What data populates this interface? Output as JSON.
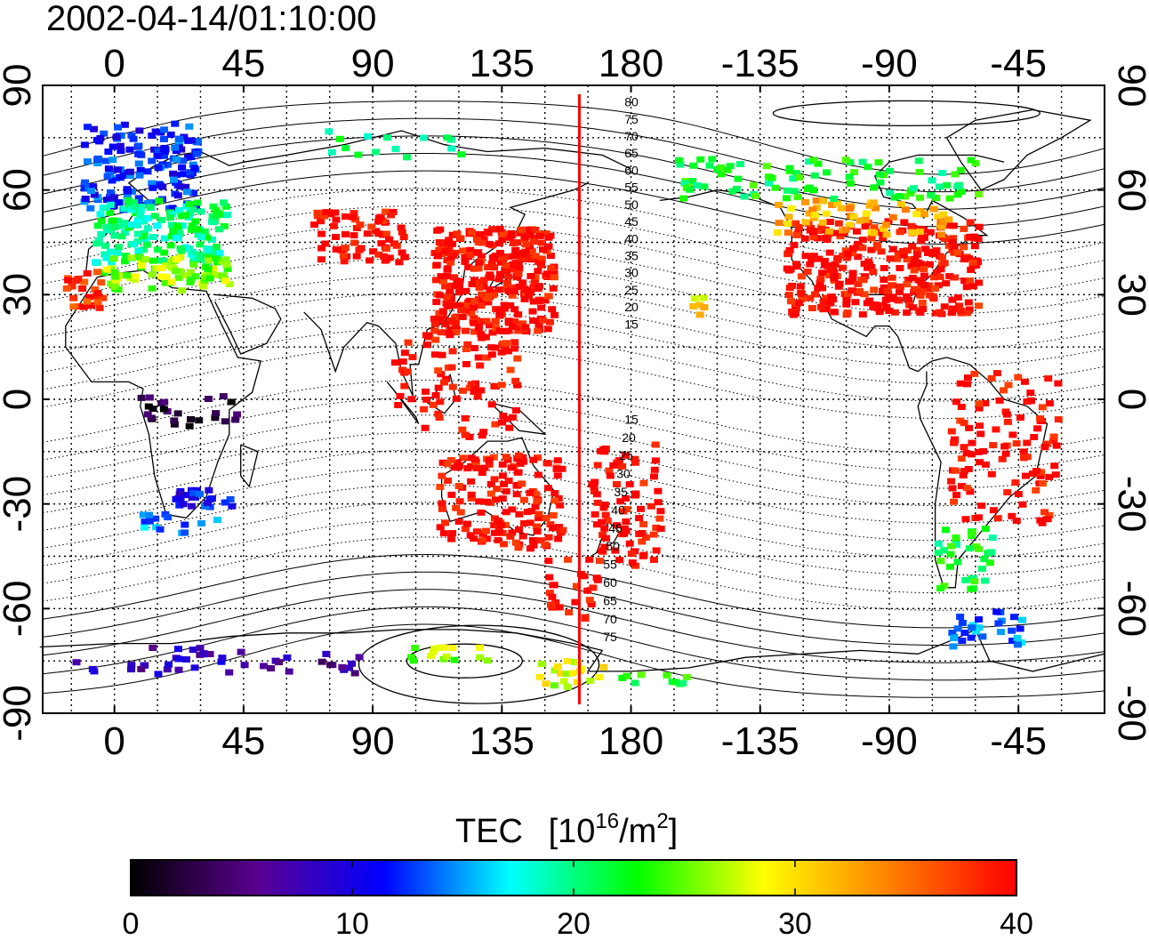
{
  "timestamp": "2002-04-14/01:10:00",
  "axes": {
    "x_ticks_top": [
      "0",
      "45",
      "90",
      "135",
      "180",
      "-135",
      "-90",
      "-45"
    ],
    "x_ticks_bottom": [
      "0",
      "45",
      "90",
      "135",
      "180",
      "-135",
      "-90",
      "-45"
    ],
    "y_ticks": [
      "90",
      "60",
      "30",
      "0",
      "-30",
      "-60",
      "-90"
    ],
    "lon_values": [
      0,
      45,
      90,
      135,
      180,
      225,
      270,
      315
    ],
    "lat_values": [
      90,
      60,
      30,
      0,
      -30,
      -60,
      -90
    ],
    "lon_range": [
      -25,
      345
    ],
    "lat_range": [
      -90,
      90
    ]
  },
  "terminator_longitude": 162,
  "contour_labels_north": [
    "80",
    "75",
    "70",
    "65",
    "60",
    "55",
    "50",
    "45",
    "40",
    "35",
    "30",
    "25",
    "20",
    "15"
  ],
  "contour_labels_south": [
    "15",
    "20",
    "25",
    "30",
    "35",
    "40",
    "45",
    "50",
    "55",
    "60",
    "65",
    "70",
    "75"
  ],
  "colorbar": {
    "title": "TEC",
    "unit_prefix": "[10",
    "unit_exp1": "16",
    "unit_mid": "/m",
    "unit_exp2": "2",
    "unit_suffix": "]",
    "ticks": [
      "0",
      "10",
      "20",
      "30",
      "40"
    ],
    "min": 0,
    "max": 40,
    "colors": [
      "#000000",
      "#5a0090",
      "#0000ff",
      "#00ffff",
      "#00ff00",
      "#ffff00",
      "#ff8000",
      "#ff0000"
    ]
  },
  "tec_regions": [
    {
      "lon": [
        -12,
        28
      ],
      "lat": [
        55,
        80
      ],
      "tec": 12,
      "count": 160
    },
    {
      "lon": [
        -8,
        38
      ],
      "lat": [
        40,
        58
      ],
      "tec": 20,
      "count": 150
    },
    {
      "lon": [
        -5,
        40
      ],
      "lat": [
        32,
        42
      ],
      "tec": 26,
      "count": 80
    },
    {
      "lon": [
        -18,
        -5
      ],
      "lat": [
        27,
        38
      ],
      "tec": 38,
      "count": 25
    },
    {
      "lon": [
        110,
        152
      ],
      "lat": [
        20,
        50
      ],
      "tec": 40,
      "count": 320
    },
    {
      "lon": [
        68,
        100
      ],
      "lat": [
        40,
        55
      ],
      "tec": 40,
      "count": 70
    },
    {
      "lon": [
        95,
        140
      ],
      "lat": [
        -10,
        20
      ],
      "tec": 40,
      "count": 90
    },
    {
      "lon": [
        112,
        155
      ],
      "lat": [
        -42,
        -15
      ],
      "tec": 40,
      "count": 150
    },
    {
      "lon": [
        165,
        190
      ],
      "lat": [
        -47,
        -12
      ],
      "tec": 40,
      "count": 80
    },
    {
      "lon": [
        148,
        168
      ],
      "lat": [
        -62,
        -45
      ],
      "tec": 40,
      "count": 25
    },
    {
      "lon": [
        233,
        300
      ],
      "lat": [
        25,
        52
      ],
      "tec": 40,
      "count": 320
    },
    {
      "lon": [
        228,
        290
      ],
      "lat": [
        48,
        58
      ],
      "tec": 32,
      "count": 60
    },
    {
      "lon": [
        195,
        300
      ],
      "lat": [
        58,
        70
      ],
      "tec": 22,
      "count": 90
    },
    {
      "lon": [
        290,
        328
      ],
      "lat": [
        -35,
        10
      ],
      "tec": 40,
      "count": 110
    },
    {
      "lon": [
        285,
        305
      ],
      "lat": [
        -55,
        -35
      ],
      "tec": 22,
      "count": 35
    },
    {
      "lon": [
        290,
        315
      ],
      "lat": [
        -70,
        -60
      ],
      "tec": 14,
      "count": 30
    },
    {
      "lon": [
        8,
        42
      ],
      "lat": [
        -8,
        2
      ],
      "tec": 2,
      "count": 25
    },
    {
      "lon": [
        20,
        40
      ],
      "lat": [
        -30,
        -25
      ],
      "tec": 11,
      "count": 25
    },
    {
      "lon": [
        8,
        35
      ],
      "lat": [
        -38,
        -32
      ],
      "tec": 15,
      "count": 15
    },
    {
      "lon": [
        -15,
        60
      ],
      "lat": [
        -78,
        -70
      ],
      "tec": 8,
      "count": 35
    },
    {
      "lon": [
        70,
        85
      ],
      "lat": [
        -78,
        -72
      ],
      "tec": 6,
      "count": 10
    },
    {
      "lon": [
        100,
        130
      ],
      "lat": [
        -75,
        -70
      ],
      "tec": 26,
      "count": 15
    },
    {
      "lon": [
        140,
        170
      ],
      "lat": [
        -82,
        -74
      ],
      "tec": 28,
      "count": 20
    },
    {
      "lon": [
        175,
        200
      ],
      "lat": [
        -82,
        -78
      ],
      "tec": 22,
      "count": 10
    },
    {
      "lon": [
        70,
        120
      ],
      "lat": [
        70,
        78
      ],
      "tec": 20,
      "count": 15
    },
    {
      "lon": [
        200,
        205
      ],
      "lat": [
        25,
        30
      ],
      "tec": 30,
      "count": 6
    }
  ]
}
